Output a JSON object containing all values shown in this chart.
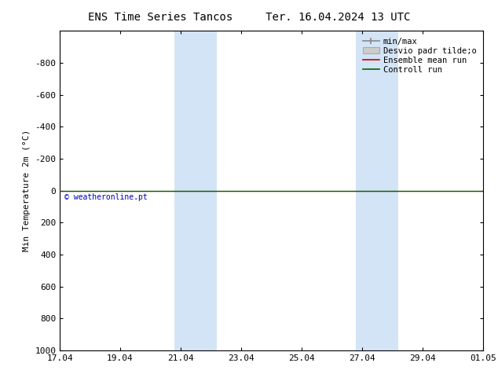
{
  "title": "ENS Time Series Tancos     Ter. 16.04.2024 13 UTC",
  "ylabel": "Min Temperature 2m (°C)",
  "xlabel": "",
  "ylim_bottom": -1000,
  "ylim_top": 1000,
  "yticks": [
    -800,
    -600,
    -400,
    -200,
    0,
    200,
    400,
    600,
    800,
    1000
  ],
  "xtick_labels": [
    "17.04",
    "19.04",
    "21.04",
    "23.04",
    "25.04",
    "27.04",
    "29.04",
    "01.05"
  ],
  "xtick_positions": [
    0,
    2,
    4,
    6,
    8,
    10,
    12,
    14
  ],
  "xlim": [
    0,
    14
  ],
  "shaded_regions": [
    {
      "xstart": 3.8,
      "xend": 5.2,
      "color": "#cce0f5",
      "alpha": 0.85
    },
    {
      "xstart": 9.8,
      "xend": 11.2,
      "color": "#cce0f5",
      "alpha": 0.85
    }
  ],
  "control_run_y": 0,
  "control_run_color": "#006400",
  "ensemble_mean_color": "#cc0000",
  "minmax_color": "#888888",
  "std_color": "#cccccc",
  "copyright_text": "© weatheronline.pt",
  "copyright_color": "#0000bb",
  "background_color": "#ffffff",
  "legend_labels": [
    "min/max",
    "Desvio padr tilde;o",
    "Ensemble mean run",
    "Controll run"
  ],
  "legend_colors": [
    "#888888",
    "#cccccc",
    "#cc0000",
    "#006400"
  ],
  "title_fontsize": 10,
  "axis_fontsize": 8,
  "tick_fontsize": 8,
  "legend_fontsize": 7.5
}
